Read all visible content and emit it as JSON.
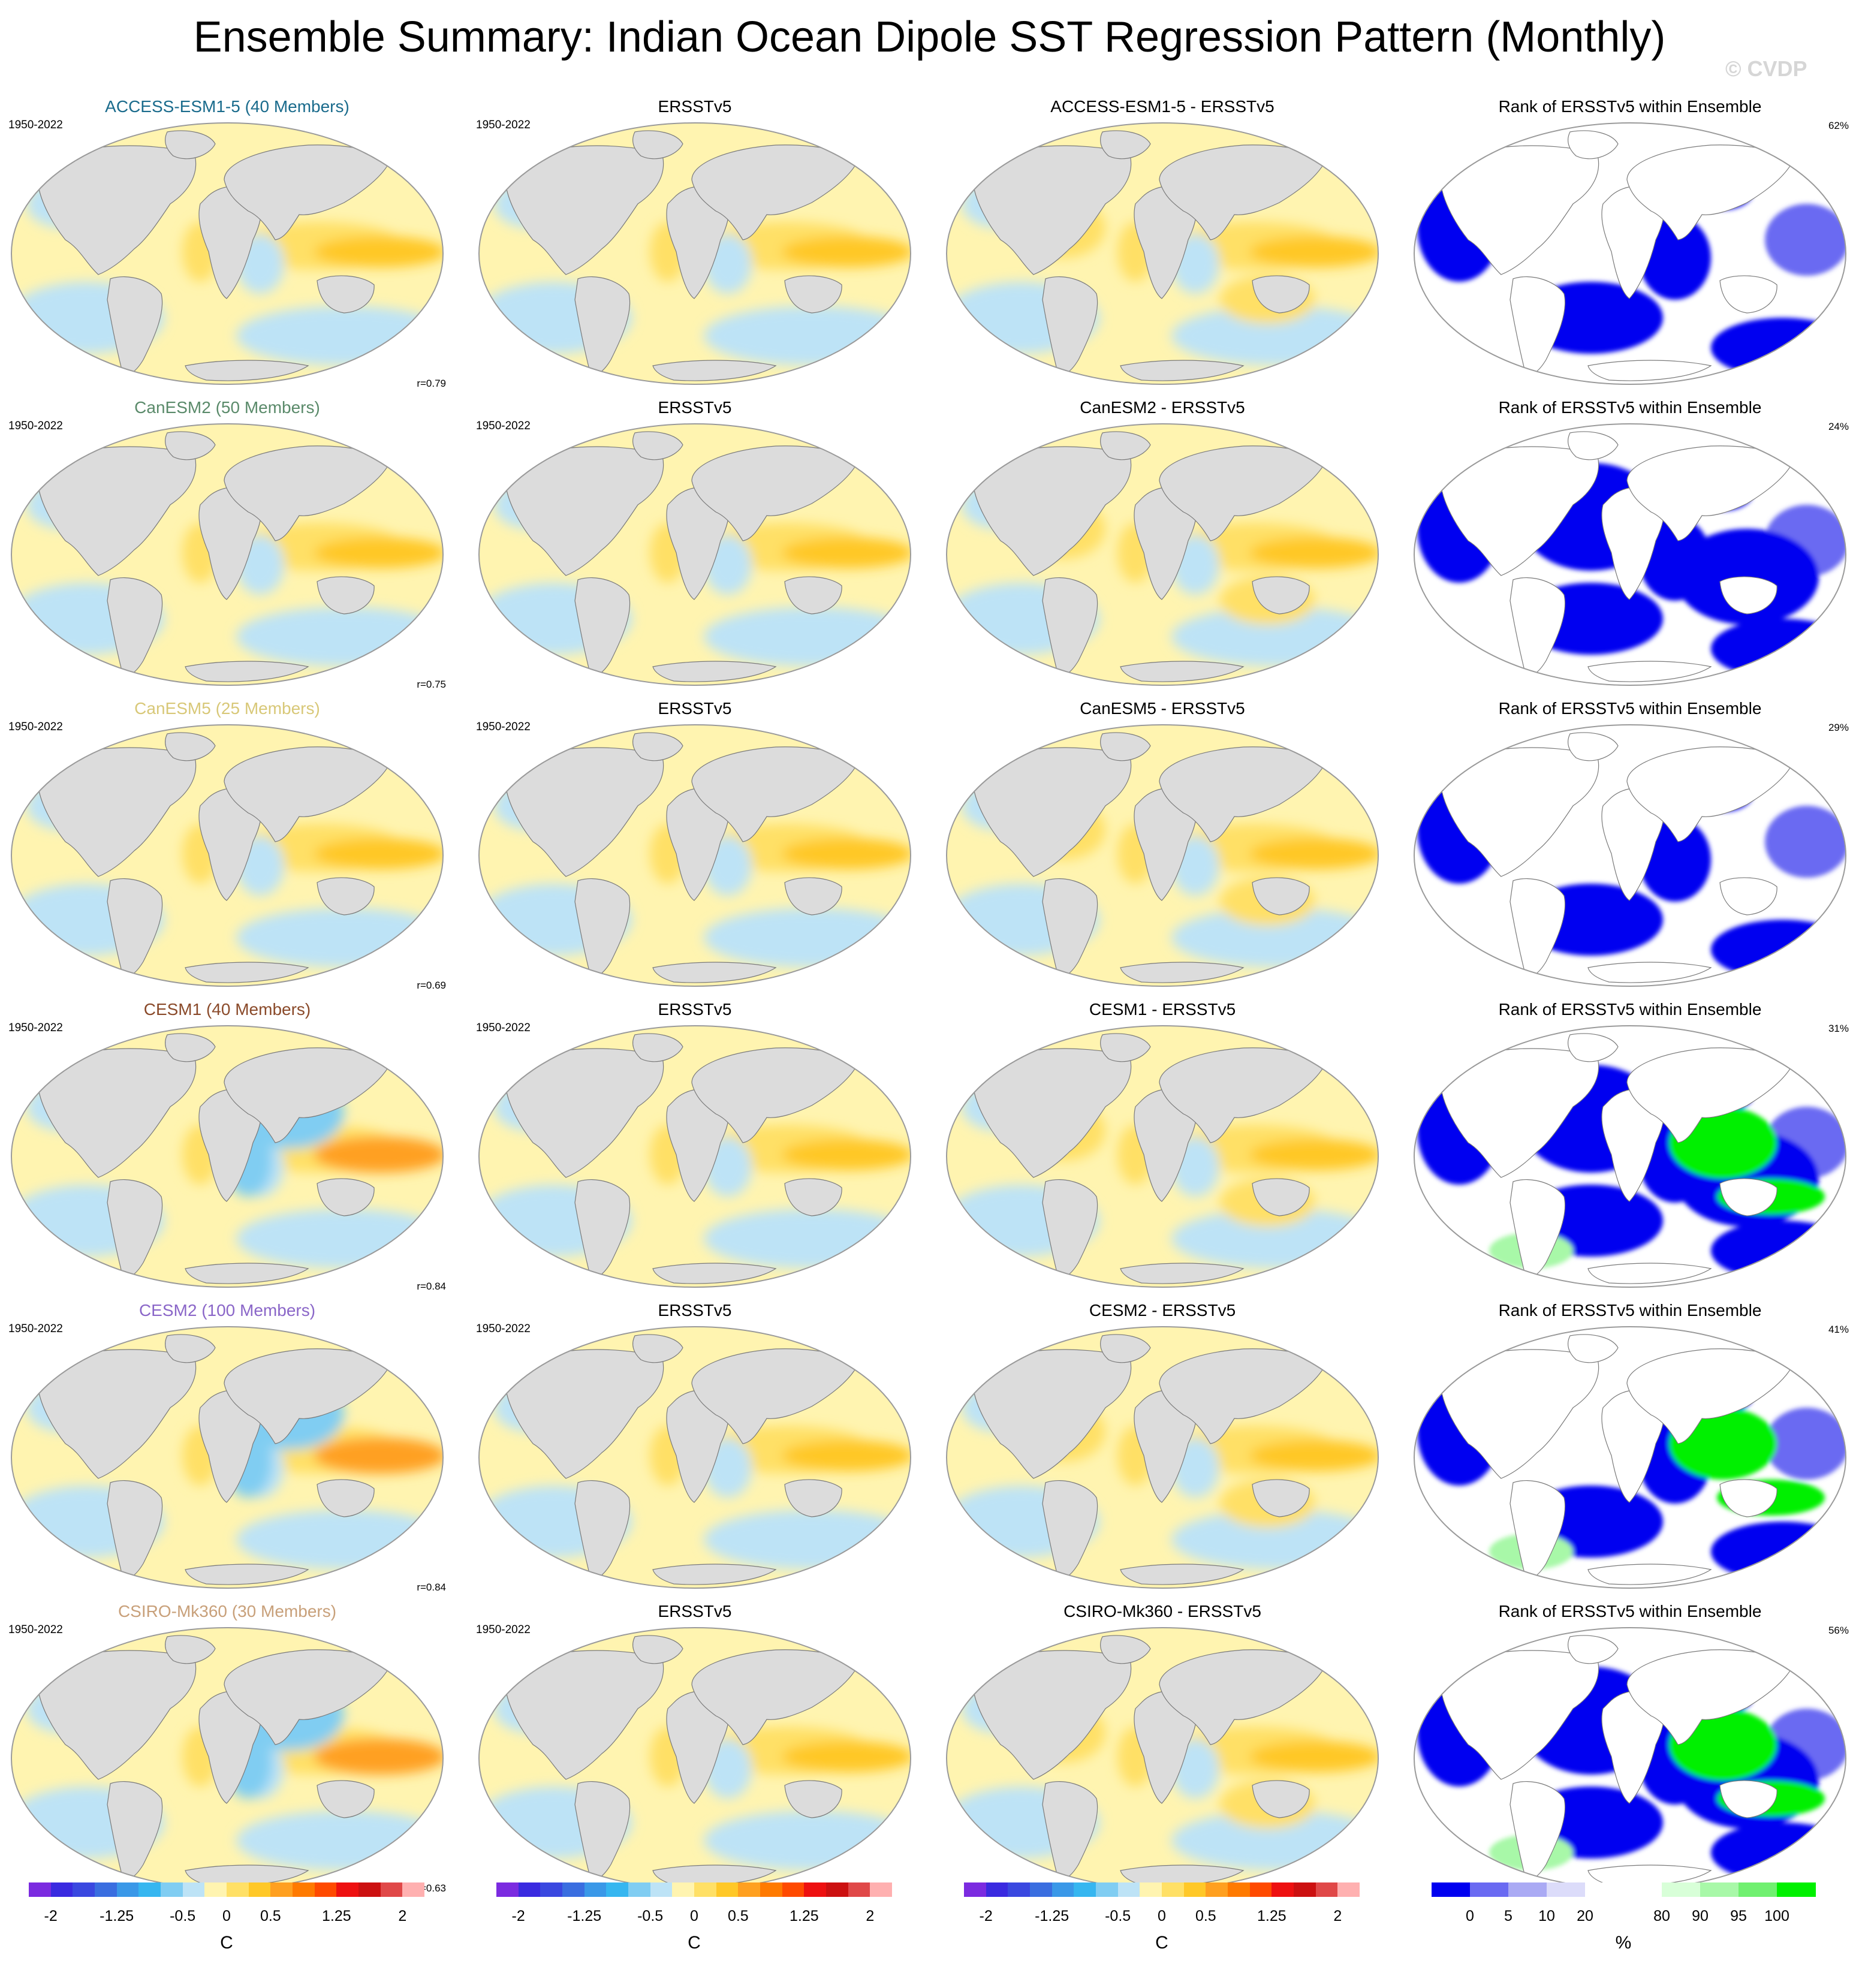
{
  "title": "Ensemble Summary: Indian Ocean Dipole SST Regression Pattern (Monthly)",
  "watermark": "© CVDP",
  "period": "1950-2022",
  "obs_title": "ERSSTv5",
  "rank_title": "Rank of ERSSTv5 within Ensemble",
  "rows": [
    {
      "model": "ACCESS-ESM1-5 (40 Members)",
      "color": "#1a6b8c",
      "diff_title": "ACCESS-ESM1-5 - ERSSTv5",
      "corr": "r=0.79",
      "pct": "62%"
    },
    {
      "model": "CanESM2 (50 Members)",
      "color": "#5a8a6a",
      "diff_title": "CanESM2 - ERSSTv5",
      "corr": "r=0.75",
      "pct": "24%"
    },
    {
      "model": "CanESM5 (25 Members)",
      "color": "#d8c878",
      "diff_title": "CanESM5 - ERSSTv5",
      "corr": "r=0.69",
      "pct": "29%"
    },
    {
      "model": "CESM1 (40 Members)",
      "color": "#8a4a2a",
      "diff_title": "CESM1 - ERSSTv5",
      "corr": "r=0.84",
      "pct": "31%"
    },
    {
      "model": "CESM2 (100 Members)",
      "color": "#8a66c8",
      "diff_title": "CESM2 - ERSSTv5",
      "corr": "r=0.84",
      "pct": "41%"
    },
    {
      "model": "CSIRO-Mk360 (30 Members)",
      "color": "#c8a07a",
      "diff_title": "CSIRO-Mk360 - ERSSTv5",
      "corr": "r=0.63",
      "pct": "56%"
    }
  ],
  "sst_colorbar": {
    "colors": [
      "#7b2be0",
      "#3a2ae0",
      "#3a48e0",
      "#3a6ee0",
      "#3a98e8",
      "#36b6f0",
      "#80cdf2",
      "#bde3f6",
      "#fff4b0",
      "#ffe066",
      "#ffc828",
      "#ffa020",
      "#ff7a00",
      "#ff4a00",
      "#ee1010",
      "#cc1010",
      "#e04848",
      "#ffb0b0"
    ],
    "ticks": [
      "-2",
      "-1.25",
      "-0.5",
      "0",
      "0.5",
      "1.25",
      "2"
    ],
    "unit": "C"
  },
  "rank_colorbar": {
    "colors": [
      "#0000f0",
      "#6a6af2",
      "#aaaaf4",
      "#dcdcfa",
      "#ffffff",
      "#ffffff",
      "#d8ffd8",
      "#a8f8a8",
      "#70f070",
      "#00f000"
    ],
    "ticks": [
      "0",
      "5",
      "10",
      "20",
      "80",
      "90",
      "95",
      "100"
    ],
    "unit": "%"
  },
  "icons": {
    "land": "gray-land-shape",
    "map_frame": "robinson-ellipse"
  }
}
